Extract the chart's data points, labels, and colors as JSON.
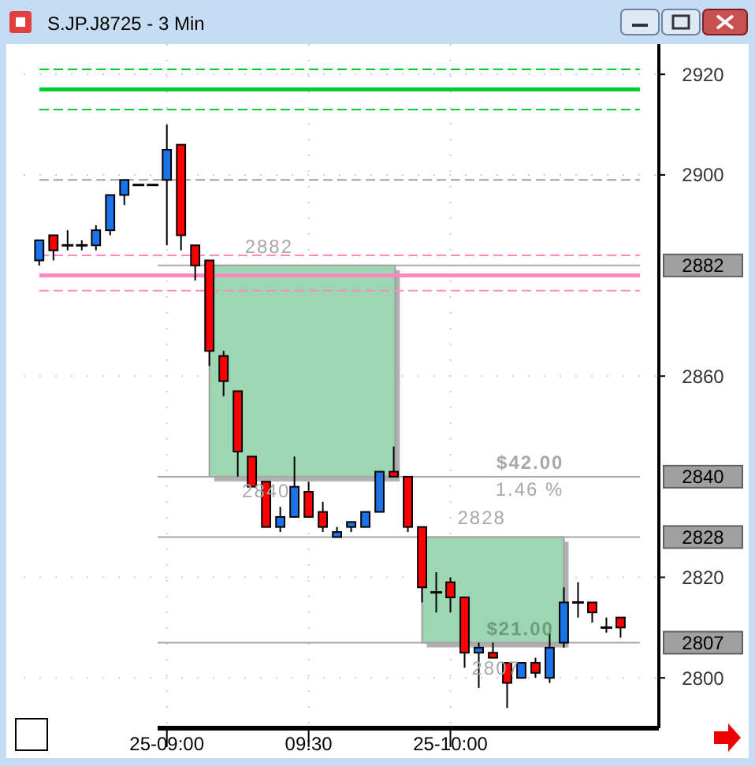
{
  "chart_data": {
    "type": "candlestick",
    "title": "S.JP.J8725 - 3 Min",
    "categories": [
      null,
      null,
      null,
      null,
      null,
      null,
      null,
      null,
      null,
      "25-09:00",
      null,
      null,
      null,
      null,
      null,
      null,
      null,
      null,
      null,
      "09:30",
      null,
      null,
      null,
      null,
      null,
      null,
      null,
      null,
      null,
      "25-10:00",
      null,
      null,
      null,
      null,
      null,
      null,
      null,
      null,
      null,
      null,
      null,
      null
    ],
    "ohlc": [
      [
        2883,
        2887,
        2882,
        2887
      ],
      [
        2888,
        2888,
        2883,
        2885
      ],
      [
        2886,
        2889,
        2885,
        2886
      ],
      [
        2886,
        2887,
        2885,
        2886
      ],
      [
        2886,
        2890,
        2885,
        2889
      ],
      [
        2889,
        2896,
        2888,
        2896
      ],
      [
        2896,
        2899,
        2894,
        2899
      ],
      [
        2898,
        2898,
        2898,
        2898
      ],
      [
        2898,
        2898,
        2898,
        2898
      ],
      [
        2899,
        2910,
        2886,
        2905
      ],
      [
        2906,
        2906,
        2885,
        2888
      ],
      [
        2886,
        2886,
        2879,
        2882
      ],
      [
        2883,
        2883,
        2862,
        2865
      ],
      [
        2864,
        2865,
        2856,
        2859
      ],
      [
        2857,
        2857,
        2840,
        2845
      ],
      [
        2844,
        2844,
        2838,
        2838
      ],
      [
        2839,
        2839,
        2830,
        2830
      ],
      [
        2830,
        2834,
        2829,
        2832
      ],
      [
        2832,
        2844,
        2832,
        2838
      ],
      [
        2837,
        2839,
        2832,
        2832
      ],
      [
        2833,
        2835,
        2829,
        2830
      ],
      [
        2828,
        2830,
        2828,
        2829
      ],
      [
        2830,
        2831,
        2829,
        2831
      ],
      [
        2830,
        2833,
        2830,
        2833
      ],
      [
        2833,
        2841,
        2833,
        2841
      ],
      [
        2841,
        2846,
        2840,
        2840
      ],
      [
        2840,
        2840,
        2829,
        2830
      ],
      [
        2830,
        2830,
        2815,
        2818
      ],
      [
        2817,
        2821,
        2813,
        2817
      ],
      [
        2819,
        2820,
        2813,
        2816
      ],
      [
        2816,
        2816,
        2802,
        2805
      ],
      [
        2805,
        2807,
        2798,
        2806
      ],
      [
        2805,
        2807,
        2804,
        2804
      ],
      [
        2803,
        2803,
        2794,
        2799
      ],
      [
        2800,
        2803,
        2800,
        2803
      ],
      [
        2803,
        2804,
        2800,
        2801
      ],
      [
        2800,
        2809,
        2799,
        2806
      ],
      [
        2807,
        2818,
        2806,
        2815
      ],
      [
        2815,
        2819,
        2812,
        2815
      ],
      [
        2815,
        2815,
        2811,
        2813
      ],
      [
        2810,
        2812,
        2809,
        2810
      ],
      [
        2812,
        2812,
        2808,
        2810
      ]
    ],
    "colors": [
      "#1a73e8",
      "#ff0000",
      "#000000",
      "#000000",
      "#1a73e8",
      "#1a73e8",
      "#1a73e8",
      "#000000",
      "#000000",
      "#1a73e8",
      "#ff0000",
      "#ff0000",
      "#ff0000",
      "#ff0000",
      "#ff0000",
      "#ff0000",
      "#ff0000",
      "#1a73e8",
      "#1a73e8",
      "#ff0000",
      "#ff0000",
      "#1a73e8",
      "#1a73e8",
      "#1a73e8",
      "#1a73e8",
      "#ff0000",
      "#ff0000",
      "#ff0000",
      "#000000",
      "#ff0000",
      "#ff0000",
      "#1a73e8",
      "#ff0000",
      "#ff0000",
      "#1a73e8",
      "#ff0000",
      "#1a73e8",
      "#1a73e8",
      "#000000",
      "#ff0000",
      "#000000",
      "#ff0000"
    ],
    "ylim": [
      2790,
      2926
    ],
    "yticks": [
      2800,
      2820,
      2860,
      2900,
      2920
    ],
    "grid": true,
    "ref_lines": [
      {
        "axis": "y",
        "value": 2921,
        "label": null,
        "color": "#00cc33",
        "line_style": "dashed"
      },
      {
        "axis": "y",
        "value": 2917,
        "label": null,
        "color": "#00cc33",
        "line_style": "solid"
      },
      {
        "axis": "y",
        "value": 2913,
        "label": null,
        "color": "#00cc33",
        "line_style": "dashed"
      },
      {
        "axis": "y",
        "value": 2899,
        "label": null,
        "color": "#a0a0a0",
        "line_style": "dashed"
      },
      {
        "axis": "y",
        "value": 2884,
        "label": null,
        "color": "#ff88c0",
        "line_style": "dashed"
      },
      {
        "axis": "y",
        "value": 2880,
        "label": null,
        "color": "#ff88c0",
        "line_style": "solid"
      },
      {
        "axis": "y",
        "value": 2877,
        "label": null,
        "color": "#ff88c0",
        "line_style": "dashed"
      },
      {
        "axis": "y",
        "value": 2882,
        "label": "2882",
        "color": "#a8a8a8",
        "line_style": "solid"
      },
      {
        "axis": "y",
        "value": 2840,
        "label": "2840",
        "color": "#a8a8a8",
        "line_style": "solid"
      },
      {
        "axis": "y",
        "value": 2828,
        "label": "2828",
        "color": "#a8a8a8",
        "line_style": "solid"
      },
      {
        "axis": "y",
        "value": 2807,
        "label": "2807",
        "color": "#a8a8a8",
        "line_style": "solid"
      }
    ],
    "annotations": [
      {
        "text": "2882",
        "y": 2882
      },
      {
        "text": "$42.00",
        "y": 2840
      },
      {
        "text": "1.46 %",
        "y": 2840
      },
      {
        "text": "2840",
        "y": 2840
      },
      {
        "text": "2828",
        "y": 2828
      },
      {
        "text": "$21.00",
        "y": 2807
      },
      {
        "text": "2807",
        "y": 2807
      }
    ]
  }
}
